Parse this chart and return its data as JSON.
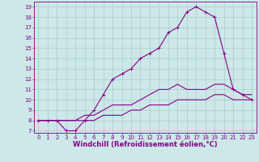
{
  "background_color": "#cce8e8",
  "line_color": "#880088",
  "xlabel": "Windchill (Refroidissement éolien,°C)",
  "xlim": [
    -0.5,
    23.5
  ],
  "ylim": [
    6.8,
    19.5
  ],
  "xticks": [
    0,
    1,
    2,
    3,
    4,
    5,
    6,
    7,
    8,
    9,
    10,
    11,
    12,
    13,
    14,
    15,
    16,
    17,
    18,
    19,
    20,
    21,
    22,
    23
  ],
  "yticks": [
    7,
    8,
    9,
    10,
    11,
    12,
    13,
    14,
    15,
    16,
    17,
    18,
    19
  ],
  "curve1_x": [
    0,
    1,
    2,
    3,
    4,
    5,
    6,
    7,
    8,
    9,
    10,
    11,
    12,
    13,
    14,
    15,
    16,
    17,
    18,
    19,
    20,
    21,
    22,
    23
  ],
  "curve1_y": [
    8,
    8,
    8,
    7,
    7,
    8,
    9,
    10.5,
    12,
    12.5,
    13,
    14,
    14.5,
    15,
    16.5,
    17,
    18.5,
    19,
    18.5,
    18,
    14.5,
    11,
    10.5,
    10
  ],
  "curve2_x": [
    0,
    1,
    2,
    3,
    4,
    5,
    6,
    7,
    8,
    9,
    10,
    11,
    12,
    13,
    14,
    15,
    16,
    17,
    18,
    19,
    20,
    21,
    22,
    23
  ],
  "curve2_y": [
    8,
    8,
    8,
    8,
    8,
    8.5,
    8.5,
    9,
    9.5,
    9.5,
    9.5,
    10,
    10.5,
    11,
    11,
    11.5,
    11,
    11,
    11,
    11.5,
    11.5,
    11,
    10.5,
    10.5
  ],
  "curve3_x": [
    0,
    1,
    2,
    3,
    4,
    5,
    6,
    7,
    8,
    9,
    10,
    11,
    12,
    13,
    14,
    15,
    16,
    17,
    18,
    19,
    20,
    21,
    22,
    23
  ],
  "curve3_y": [
    8,
    8,
    8,
    8,
    8,
    8,
    8,
    8.5,
    8.5,
    8.5,
    9,
    9,
    9.5,
    9.5,
    9.5,
    10,
    10,
    10,
    10,
    10.5,
    10.5,
    10,
    10,
    10
  ],
  "grid_color": "#aacccc",
  "tick_fontsize": 5,
  "label_fontsize": 6
}
